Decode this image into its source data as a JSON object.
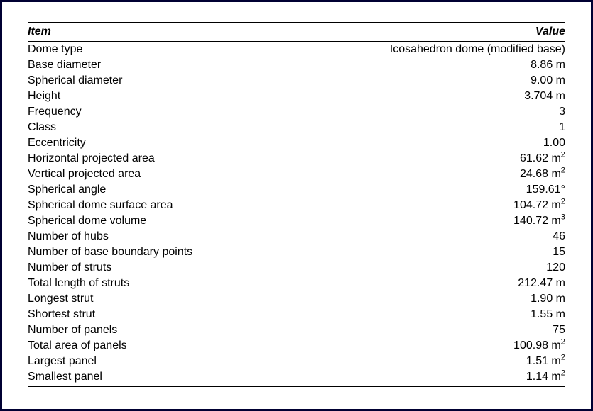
{
  "table": {
    "header_item": "Item",
    "header_value": "Value",
    "rows": [
      {
        "item": "Dome type",
        "value": "Icosahedron dome (modified base)"
      },
      {
        "item": "Base diameter",
        "value": "8.86 m"
      },
      {
        "item": "Spherical diameter",
        "value": "9.00 m"
      },
      {
        "item": "Height",
        "value": "3.704 m"
      },
      {
        "item": "Frequency",
        "value": "3"
      },
      {
        "item": "Class",
        "value": "1"
      },
      {
        "item": "Eccentricity",
        "value": "1.00"
      },
      {
        "item": "Horizontal projected area",
        "value": "61.62 m",
        "super": "2"
      },
      {
        "item": "Vertical projected area",
        "value": "24.68 m",
        "super": "2"
      },
      {
        "item": "Spherical angle",
        "value": "159.61°"
      },
      {
        "item": "Spherical dome surface area",
        "value": "104.72 m",
        "super": "2"
      },
      {
        "item": "Spherical dome volume",
        "value": "140.72 m",
        "super": "3"
      },
      {
        "item": "Number of hubs",
        "value": "46"
      },
      {
        "item": "Number of base boundary points",
        "value": "15"
      },
      {
        "item": "Number of struts",
        "value": "120"
      },
      {
        "item": "Total length of struts",
        "value": "212.47 m"
      },
      {
        "item": "Longest strut",
        "value": "1.90 m"
      },
      {
        "item": "Shortest strut",
        "value": "1.55 m"
      },
      {
        "item": "Number of panels",
        "value": "75"
      },
      {
        "item": "Total area of panels",
        "value": "100.98 m",
        "super": "2"
      },
      {
        "item": "Largest panel",
        "value": "1.51 m",
        "super": "2"
      },
      {
        "item": "Smallest panel",
        "value": "1.14 m",
        "super": "2"
      }
    ]
  }
}
